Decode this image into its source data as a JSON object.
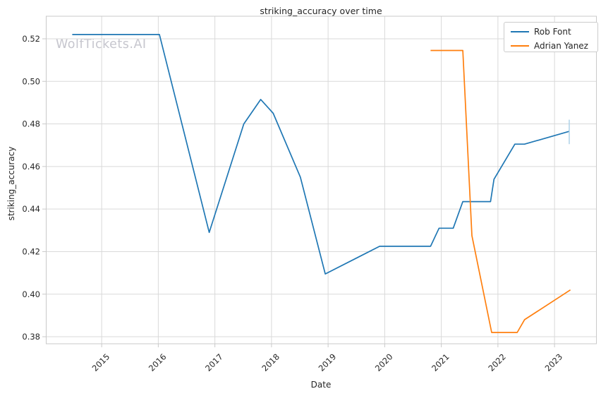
{
  "colors": {
    "background": "#ffffff",
    "grid": "#d9d9d9",
    "spine": "#c9c9c9",
    "tick": "#c9c9c9",
    "text": "#262626",
    "watermark": "#c6c6ce",
    "series_blue": "#1f77b4",
    "series_orange": "#ff7f0e",
    "end_marker_blue": "#a8cfe6"
  },
  "chart_data": {
    "type": "line",
    "title": "striking_accuracy over time",
    "xlabel": "Date",
    "ylabel": "striking_accuracy",
    "watermark": "WolfTickets.AI",
    "grid": true,
    "legend_position": "upper right",
    "xlim": [
      2014.02,
      2023.74
    ],
    "ylim": [
      0.3767,
      0.5306
    ],
    "x_ticks": [
      2015,
      2016,
      2017,
      2018,
      2019,
      2020,
      2021,
      2022,
      2023
    ],
    "x_tick_labels": [
      "2015",
      "2016",
      "2017",
      "2018",
      "2019",
      "2020",
      "2021",
      "2022",
      "2023"
    ],
    "y_ticks": [
      0.38,
      0.4,
      0.42,
      0.44,
      0.46,
      0.48,
      0.5,
      0.52
    ],
    "y_tick_labels": [
      "0.38",
      "0.40",
      "0.42",
      "0.44",
      "0.46",
      "0.48",
      "0.50",
      "0.52"
    ],
    "series": [
      {
        "name": "Rob Font",
        "color": "#1f77b4",
        "points": [
          [
            2014.48,
            0.522
          ],
          [
            2016.02,
            0.522
          ],
          [
            2016.9,
            0.429
          ],
          [
            2017.51,
            0.48
          ],
          [
            2017.81,
            0.4915
          ],
          [
            2018.03,
            0.485
          ],
          [
            2018.51,
            0.455
          ],
          [
            2018.95,
            0.4095
          ],
          [
            2019.91,
            0.4225
          ],
          [
            2020.81,
            0.4225
          ],
          [
            2020.96,
            0.431
          ],
          [
            2021.21,
            0.431
          ],
          [
            2021.38,
            0.4435
          ],
          [
            2021.87,
            0.4435
          ],
          [
            2021.93,
            0.454
          ],
          [
            2022.3,
            0.4705
          ],
          [
            2022.47,
            0.4705
          ],
          [
            2023.26,
            0.4765
          ]
        ]
      },
      {
        "name": "Adrian Yanez",
        "color": "#ff7f0e",
        "points": [
          [
            2020.81,
            0.5145
          ],
          [
            2021.38,
            0.5145
          ],
          [
            2021.54,
            0.4275
          ],
          [
            2021.89,
            0.382
          ],
          [
            2022.34,
            0.382
          ],
          [
            2022.47,
            0.388
          ],
          [
            2023.28,
            0.402
          ]
        ]
      }
    ],
    "end_marker": {
      "series": "Rob Font",
      "x": 2023.26,
      "y_low": 0.4705,
      "y_high": 0.482,
      "color": "#a8cfe6"
    }
  }
}
